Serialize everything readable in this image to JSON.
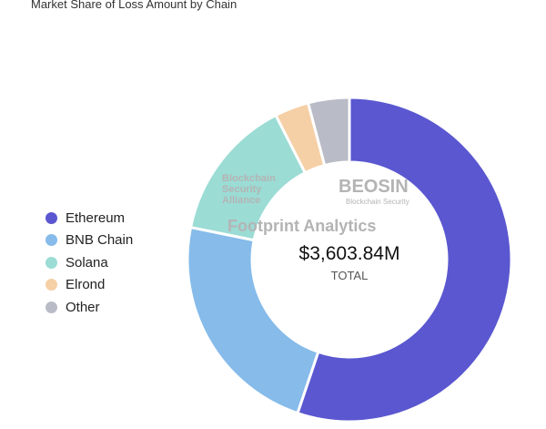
{
  "chart_data": {
    "type": "pie",
    "variant": "donut",
    "title": "Market Share of Loss Amount by Chain",
    "unit": "$M (estimated from slice angles)",
    "categories": [
      "Ethereum",
      "BNB Chain",
      "Solana",
      "Elrond",
      "Other"
    ],
    "values": [
      1989,
      829,
      515,
      123,
      148
    ],
    "colors": [
      "#5a57d0",
      "#86bbea",
      "#9bdcd5",
      "#f5cfa6",
      "#b9bcc6"
    ],
    "center_value": "$3,603.84M",
    "center_label": "TOTAL",
    "legend_position": "left"
  },
  "watermarks": [
    "Blockchain Security Alliance",
    "BEOSIN",
    "Blockchain Security",
    "Footprint Analytics"
  ]
}
